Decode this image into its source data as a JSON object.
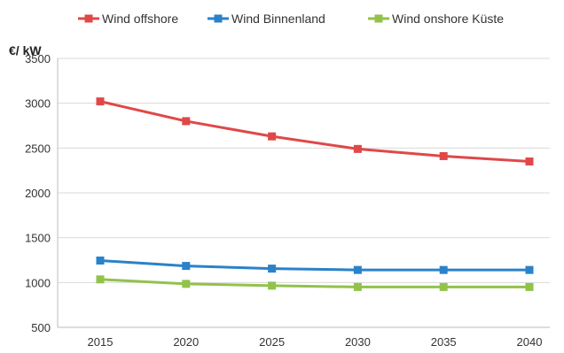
{
  "chart_data": {
    "type": "line",
    "ylabel": "€/ kW",
    "categories": [
      "2015",
      "2020",
      "2025",
      "2030",
      "2035",
      "2040"
    ],
    "ylim": [
      500,
      3500
    ],
    "yticks": [
      500,
      1000,
      1500,
      2000,
      2500,
      3000,
      3500
    ],
    "grid": true,
    "legend_position": "top",
    "series": [
      {
        "name": "Wind offshore",
        "color": "#e04848",
        "values": [
          3020,
          2800,
          2630,
          2490,
          2410,
          2350
        ]
      },
      {
        "name": "Wind Binnenland",
        "color": "#2a82c9",
        "values": [
          1245,
          1185,
          1155,
          1140,
          1140,
          1140
        ]
      },
      {
        "name": "Wind onshore Küste",
        "color": "#92c24a",
        "values": [
          1035,
          985,
          965,
          950,
          950,
          950
        ]
      }
    ]
  }
}
